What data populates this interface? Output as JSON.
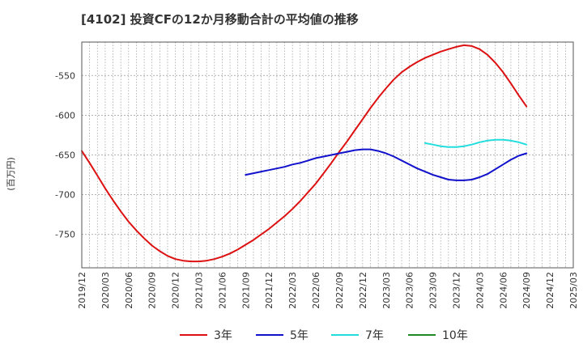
{
  "chart_data": {
    "type": "line",
    "title": "[4102]  投資CFの12か月移動合計の平均値の推移",
    "ylabel": "(百万円)",
    "xlabel": "",
    "ylim": [
      -792,
      -508
    ],
    "yticks": [
      -550,
      -600,
      -650,
      -700,
      -750
    ],
    "x_ticks": [
      "2019/12",
      "2020/03",
      "2020/06",
      "2020/09",
      "2020/12",
      "2021/03",
      "2021/06",
      "2021/09",
      "2021/12",
      "2022/03",
      "2022/06",
      "2022/09",
      "2022/12",
      "2023/03",
      "2023/06",
      "2023/09",
      "2023/12",
      "2024/03",
      "2024/06",
      "2024/09",
      "2024/12",
      "2025/03"
    ],
    "grid": true,
    "legend_position": "bottom",
    "series": [
      {
        "name": "3年",
        "color": "#dd1111",
        "x": [
          "2019/12",
          "2020/01",
          "2020/02",
          "2020/03",
          "2020/04",
          "2020/05",
          "2020/06",
          "2020/07",
          "2020/08",
          "2020/09",
          "2020/10",
          "2020/11",
          "2020/12",
          "2021/01",
          "2021/02",
          "2021/03",
          "2021/04",
          "2021/05",
          "2021/06",
          "2021/07",
          "2021/08",
          "2021/09",
          "2021/10",
          "2021/11",
          "2021/12",
          "2022/01",
          "2022/02",
          "2022/03",
          "2022/04",
          "2022/05",
          "2022/06",
          "2022/07",
          "2022/08",
          "2022/09",
          "2022/10",
          "2022/11",
          "2022/12",
          "2023/01",
          "2023/02",
          "2023/03",
          "2023/04",
          "2023/05",
          "2023/06",
          "2023/07",
          "2023/08",
          "2023/09",
          "2023/10",
          "2023/11",
          "2023/12",
          "2024/01",
          "2024/02",
          "2024/03",
          "2024/04",
          "2024/05",
          "2024/06",
          "2024/07",
          "2024/08",
          "2024/09"
        ],
        "values": [
          -645,
          -660,
          -676,
          -692,
          -707,
          -721,
          -734,
          -745,
          -755,
          -764,
          -771,
          -777,
          -781,
          -783,
          -784,
          -784,
          -783,
          -781,
          -778,
          -774,
          -769,
          -763,
          -757,
          -750,
          -743,
          -735,
          -727,
          -718,
          -708,
          -697,
          -686,
          -673,
          -660,
          -646,
          -633,
          -619,
          -605,
          -591,
          -578,
          -566,
          -555,
          -546,
          -539,
          -533,
          -528,
          -524,
          -520,
          -517,
          -514,
          -512,
          -513,
          -517,
          -524,
          -534,
          -546,
          -560,
          -575,
          -589
        ]
      },
      {
        "name": "5年",
        "color": "#1111cc",
        "x": [
          "2021/09",
          "2021/10",
          "2021/11",
          "2021/12",
          "2022/01",
          "2022/02",
          "2022/03",
          "2022/04",
          "2022/05",
          "2022/06",
          "2022/07",
          "2022/08",
          "2022/09",
          "2022/10",
          "2022/11",
          "2022/12",
          "2023/01",
          "2023/02",
          "2023/03",
          "2023/04",
          "2023/05",
          "2023/06",
          "2023/07",
          "2023/08",
          "2023/09",
          "2023/10",
          "2023/11",
          "2023/12",
          "2024/01",
          "2024/02",
          "2024/03",
          "2024/04",
          "2024/05",
          "2024/06",
          "2024/07",
          "2024/08",
          "2024/09"
        ],
        "values": [
          -675,
          -673,
          -671,
          -669,
          -667,
          -665,
          -662,
          -660,
          -657,
          -654,
          -652,
          -650,
          -648,
          -646,
          -644,
          -643,
          -643,
          -645,
          -648,
          -652,
          -657,
          -662,
          -667,
          -671,
          -675,
          -678,
          -681,
          -682,
          -682,
          -681,
          -678,
          -674,
          -668,
          -662,
          -656,
          -651,
          -648
        ]
      },
      {
        "name": "7年",
        "color": "#22dddd",
        "x": [
          "2023/08",
          "2023/09",
          "2023/10",
          "2023/11",
          "2023/12",
          "2024/01",
          "2024/02",
          "2024/03",
          "2024/04",
          "2024/05",
          "2024/06",
          "2024/07",
          "2024/08",
          "2024/09"
        ],
        "values": [
          -635,
          -637,
          -639,
          -640,
          -640,
          -639,
          -637,
          -634,
          -632,
          -631,
          -631,
          -632,
          -634,
          -637
        ]
      },
      {
        "name": "10年",
        "color": "#228822",
        "x": [],
        "values": []
      }
    ]
  }
}
